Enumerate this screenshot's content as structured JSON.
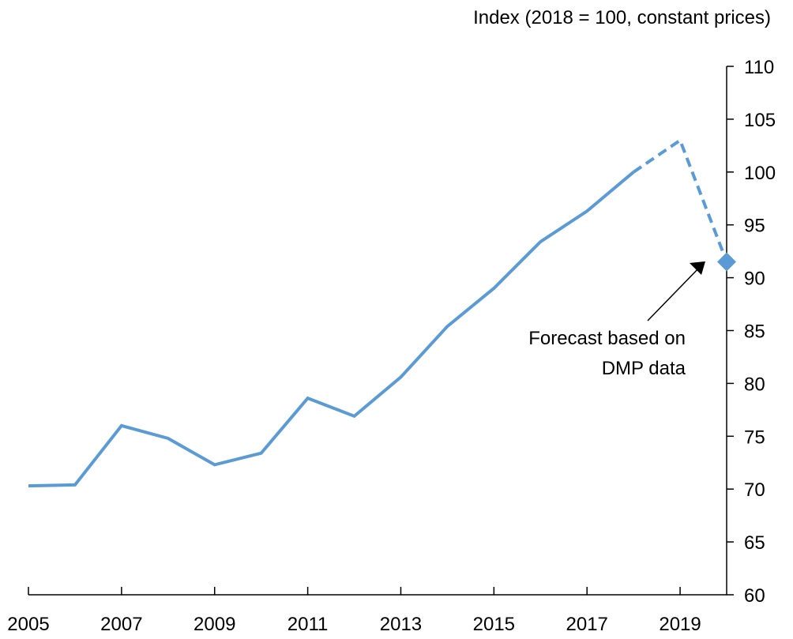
{
  "chart_data": {
    "type": "line",
    "y_axis_label": "Index (2018 = 100, constant prices)",
    "x": [
      2005,
      2006,
      2007,
      2008,
      2009,
      2010,
      2011,
      2012,
      2013,
      2014,
      2015,
      2016,
      2017,
      2018,
      2019,
      2020
    ],
    "series": [
      {
        "color": "#5b9bd5",
        "dash": false,
        "values": [
          70.3,
          70.4,
          76.0,
          74.8,
          72.3,
          73.4,
          78.6,
          76.9,
          80.6,
          85.4,
          89.0,
          93.4,
          96.3,
          100,
          null,
          null
        ]
      },
      {
        "color": "#5b9bd5",
        "dash": true,
        "end_marker": "diamond",
        "values": [
          null,
          null,
          null,
          null,
          null,
          null,
          null,
          null,
          null,
          null,
          null,
          null,
          null,
          100,
          103.0,
          91.5
        ]
      }
    ],
    "xlim": [
      2005,
      2020
    ],
    "xticks": [
      2005,
      2007,
      2009,
      2011,
      2013,
      2015,
      2017,
      2019
    ],
    "ylim": [
      60,
      110
    ],
    "yticks": [
      60,
      65,
      70,
      75,
      80,
      85,
      90,
      95,
      100,
      105,
      110
    ],
    "y_axis_side": "right",
    "grid": false,
    "annotation": {
      "lines": [
        "Forecast based on",
        "DMP data"
      ]
    }
  }
}
